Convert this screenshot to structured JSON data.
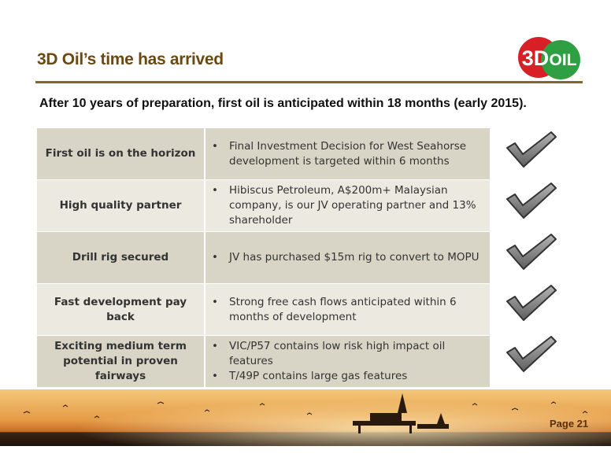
{
  "header": {
    "title": "3D Oil’s time has arrived",
    "logo": {
      "left": "3D",
      "right": "OIL"
    }
  },
  "subtitle": "After 10 years of preparation, first oil is anticipated within 18 months (early 2015).",
  "table": {
    "rows": [
      {
        "label": "First oil is on the horizon",
        "bullets": [
          "Final Investment Decision for West Seahorse development is targeted within 6 months"
        ]
      },
      {
        "label": "High quality partner",
        "bullets": [
          "Hibiscus Petroleum, A$200m+ Malaysian company, is our JV  operating partner and 13% shareholder"
        ]
      },
      {
        "label": "Drill rig secured",
        "bullets": [
          "JV has purchased $15m rig to convert to MOPU"
        ]
      },
      {
        "label": "Fast development pay back",
        "bullets": [
          "Strong free cash flows anticipated within 6 months of development"
        ]
      },
      {
        "label": "Exciting medium term potential in proven fairways",
        "bullets": [
          "VIC/P57 contains low risk high impact oil features",
          "T/49P contains large gas features"
        ]
      }
    ]
  },
  "footer": {
    "page": "Page 21"
  }
}
